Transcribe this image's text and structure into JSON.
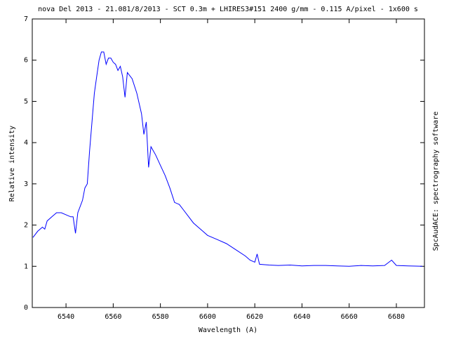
{
  "chart_data": {
    "type": "line",
    "title": "nova Del 2013 - 21.081/8/2013 - SCT 0.3m + LHIRES3#151 2400 g/mm - 0.115 A/pixel - 1x600 s",
    "x_label": "Wavelength (A)",
    "y_label": "Relative intensity",
    "side_note": "SpcAudACE: spectrography software",
    "color": "#0000ff",
    "x": [
      6526,
      6528,
      6530,
      6531,
      6532,
      6534,
      6536,
      6538,
      6540,
      6542,
      6543,
      6544,
      6545,
      6547,
      6548,
      6549,
      6550,
      6551,
      6552,
      6553,
      6554,
      6555,
      6556,
      6557,
      6558,
      6559,
      6560,
      6561,
      6562,
      6563,
      6564,
      6565,
      6566,
      6568,
      6570,
      6572,
      6573,
      6574,
      6575,
      6576,
      6578,
      6580,
      6582,
      6584,
      6586,
      6588,
      6590,
      6592,
      6594,
      6596,
      6598,
      6600,
      6604,
      6608,
      6612,
      6616,
      6618,
      6620,
      6621,
      6622,
      6626,
      6630,
      6635,
      6640,
      6645,
      6650,
      6655,
      6660,
      6665,
      6670,
      6675,
      6678,
      6680,
      6685,
      6691
    ],
    "values": [
      1.7,
      1.85,
      1.95,
      1.9,
      2.1,
      2.2,
      2.3,
      2.3,
      2.25,
      2.2,
      2.2,
      1.8,
      2.3,
      2.6,
      2.9,
      3.0,
      3.8,
      4.5,
      5.2,
      5.6,
      6.0,
      6.2,
      6.2,
      5.9,
      6.05,
      6.05,
      5.95,
      5.9,
      5.75,
      5.85,
      5.6,
      5.1,
      5.7,
      5.55,
      5.2,
      4.7,
      4.2,
      4.5,
      3.4,
      3.9,
      3.7,
      3.45,
      3.2,
      2.9,
      2.55,
      2.5,
      2.35,
      2.2,
      2.05,
      1.95,
      1.85,
      1.75,
      1.65,
      1.55,
      1.4,
      1.25,
      1.15,
      1.1,
      1.3,
      1.05,
      1.03,
      1.02,
      1.03,
      1.01,
      1.02,
      1.02,
      1.01,
      1.0,
      1.02,
      1.01,
      1.02,
      1.15,
      1.02,
      1.01,
      1.0
    ],
    "xlim": [
      6525.7,
      6691.9
    ],
    "xticks": [
      6540,
      6560,
      6580,
      6600,
      6620,
      6640,
      6660,
      6680
    ],
    "ylim": [
      0,
      7
    ],
    "yticks": [
      0,
      1,
      2,
      3,
      4,
      5,
      6,
      7
    ]
  }
}
